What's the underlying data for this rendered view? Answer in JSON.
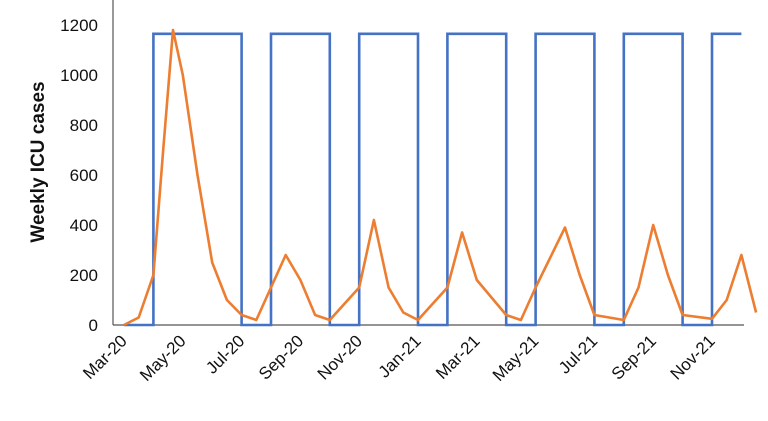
{
  "chart_data": {
    "type": "line",
    "ylabel": "Weekly ICU cases",
    "xlabel": "",
    "ylim": [
      0,
      1200
    ],
    "yticks": [
      0,
      200,
      400,
      600,
      800,
      1000,
      1200
    ],
    "x_tick_labels": [
      "Mar-20",
      "May-20",
      "Jul-20",
      "Sep-20",
      "Nov-20",
      "Jan-21",
      "Mar-21",
      "May-21",
      "Jul-21",
      "Sep-21",
      "Nov-21"
    ],
    "grid": false,
    "legend": "none",
    "series": [
      {
        "color": "#4472C4",
        "style": "step",
        "points": [
          [
            "Mar-20",
            0
          ],
          [
            "Apr-20",
            0
          ],
          [
            "Apr-20",
            1165
          ],
          [
            "Jul-20",
            1165
          ],
          [
            "Jul-20",
            0
          ],
          [
            "Aug-20",
            0
          ],
          [
            "Aug-20",
            1165
          ],
          [
            "Oct-20",
            1165
          ],
          [
            "Oct-20",
            0
          ],
          [
            "Nov-20",
            0
          ],
          [
            "Nov-20",
            1165
          ],
          [
            "Jan-21",
            1165
          ],
          [
            "Jan-21",
            0
          ],
          [
            "Feb-21",
            0
          ],
          [
            "Feb-21",
            1165
          ],
          [
            "Apr-21",
            1165
          ],
          [
            "Apr-21",
            0
          ],
          [
            "May-21",
            0
          ],
          [
            "May-21",
            1165
          ],
          [
            "Jul-21",
            1165
          ],
          [
            "Jul-21",
            0
          ],
          [
            "Aug-21",
            0
          ],
          [
            "Aug-21",
            1165
          ],
          [
            "Oct-21",
            1165
          ],
          [
            "Oct-21",
            0
          ],
          [
            "Nov-21",
            0
          ],
          [
            "Nov-21",
            1165
          ],
          [
            "Dec-21",
            1165
          ]
        ]
      },
      {
        "color": "#ED7D31",
        "style": "line",
        "points": [
          [
            "Mar-20",
            0
          ],
          [
            "Mar-20",
            30
          ],
          [
            "Apr-20",
            200
          ],
          [
            "Apr-20",
            700
          ],
          [
            "Apr-20",
            1180
          ],
          [
            "May-20",
            1000
          ],
          [
            "May-20",
            600
          ],
          [
            "Jun-20",
            250
          ],
          [
            "Jun-20",
            100
          ],
          [
            "Jul-20",
            40
          ],
          [
            "Jul-20",
            20
          ],
          [
            "Aug-20",
            150
          ],
          [
            "Aug-20",
            280
          ],
          [
            "Sep-20",
            180
          ],
          [
            "Sep-20",
            40
          ],
          [
            "Oct-20",
            20
          ],
          [
            "Nov-20",
            150
          ],
          [
            "Nov-20",
            420
          ],
          [
            "Dec-20",
            150
          ],
          [
            "Dec-20",
            50
          ],
          [
            "Jan-21",
            20
          ],
          [
            "Feb-21",
            150
          ],
          [
            "Feb-21",
            370
          ],
          [
            "Mar-21",
            180
          ],
          [
            "Apr-21",
            40
          ],
          [
            "Apr-21",
            20
          ],
          [
            "May-21",
            150
          ],
          [
            "Jun-21",
            390
          ],
          [
            "Jun-21",
            200
          ],
          [
            "Jul-21",
            40
          ],
          [
            "Aug-21",
            20
          ],
          [
            "Aug-21",
            150
          ],
          [
            "Sep-21",
            400
          ],
          [
            "Sep-21",
            200
          ],
          [
            "Oct-21",
            40
          ],
          [
            "Nov-21",
            25
          ],
          [
            "Nov-21",
            100
          ],
          [
            "Dec-21",
            280
          ],
          [
            "Dec-21",
            50
          ]
        ]
      }
    ]
  }
}
